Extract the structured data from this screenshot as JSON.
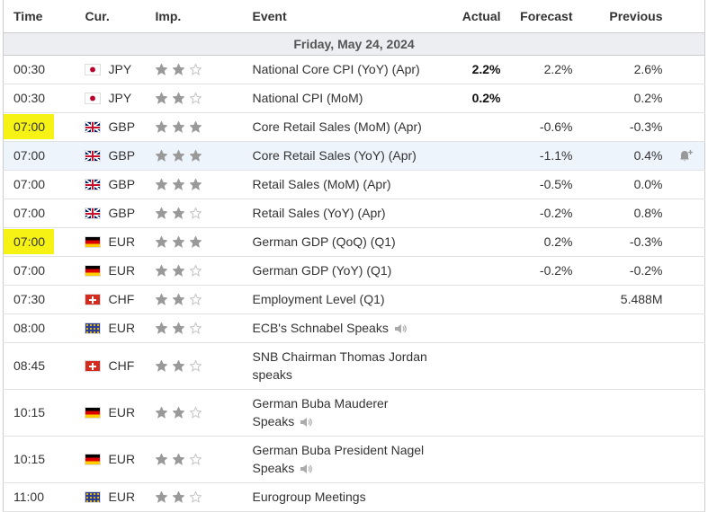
{
  "header": {
    "columns": [
      "Time",
      "Cur.",
      "Imp.",
      "Event",
      "Actual",
      "Forecast",
      "Previous"
    ]
  },
  "date": "Friday, May 24, 2024",
  "rows": [
    {
      "time": "00:30",
      "currency": "JPY",
      "importance": 2,
      "event": "National Core CPI (YoY) (Apr)",
      "actual": "2.2%",
      "forecast": "2.2%",
      "previous": "2.6%"
    },
    {
      "time": "00:30",
      "currency": "JPY",
      "importance": 2,
      "event": "National CPI (MoM)",
      "actual": "0.2%",
      "previous": "0.2%"
    },
    {
      "time": "07:00",
      "currency": "GBP",
      "importance": 3,
      "event": "Core Retail Sales (MoM) (Apr)",
      "forecast": "-0.6%",
      "previous": "-0.3%"
    },
    {
      "time": "07:00",
      "currency": "GBP",
      "importance": 3,
      "event": "Core Retail Sales (YoY) (Apr)",
      "forecast": "-1.1%",
      "previous": "0.4%"
    },
    {
      "time": "07:00",
      "currency": "GBP",
      "importance": 3,
      "event": "Retail Sales (MoM) (Apr)",
      "forecast": "-0.5%",
      "previous": "0.0%"
    },
    {
      "time": "07:00",
      "currency": "GBP",
      "importance": 2,
      "event": "Retail Sales (YoY) (Apr)",
      "forecast": "-0.2%",
      "previous": "0.8%"
    },
    {
      "time": "07:00",
      "currency": "EUR",
      "importance": 3,
      "event": "German GDP (QoQ) (Q1)",
      "forecast": "0.2%",
      "previous": "-0.3%"
    },
    {
      "time": "07:00",
      "currency": "EUR",
      "importance": 2,
      "event": "German GDP (YoY) (Q1)",
      "forecast": "-0.2%",
      "previous": "-0.2%"
    },
    {
      "time": "07:30",
      "currency": "CHF",
      "importance": 2,
      "event": "Employment Level (Q1)",
      "previous": "5.488M"
    },
    {
      "time": "08:00",
      "currency": "EUR",
      "importance": 2,
      "event": "ECB's Schnabel Speaks"
    },
    {
      "time": "08:45",
      "currency": "CHF",
      "importance": 2,
      "event": "SNB Chairman Thomas Jordan speaks"
    },
    {
      "time": "10:15",
      "currency": "EUR",
      "importance": 2,
      "event": "German Buba Mauderer Speaks"
    },
    {
      "time": "10:15",
      "currency": "EUR",
      "importance": 2,
      "event": "German Buba President Nagel Speaks"
    },
    {
      "time": "11:00",
      "currency": "EUR",
      "importance": 2,
      "event": "Eurogroup Meetings"
    }
  ]
}
